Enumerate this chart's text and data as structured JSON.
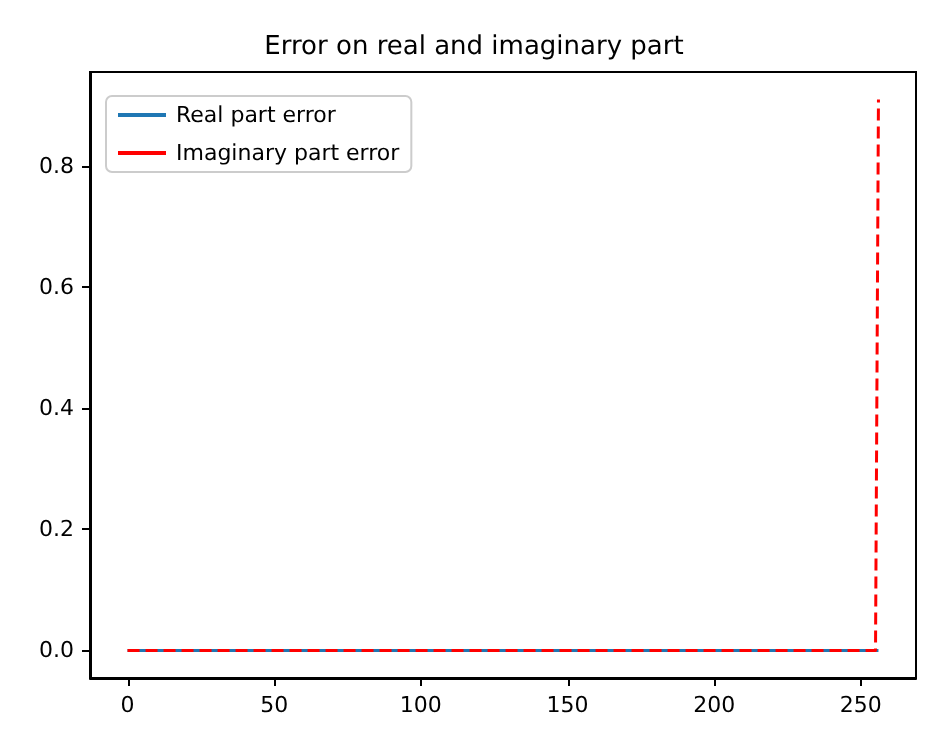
{
  "chart_data": {
    "type": "line",
    "title": "Error on real and imaginary part",
    "xlim": [
      -12.8,
      268.8
    ],
    "ylim": [
      -0.0455,
      0.9555
    ],
    "xticks": [
      0,
      50,
      100,
      150,
      200,
      250
    ],
    "yticks": [
      {
        "value": 0,
        "label": "0.0"
      },
      {
        "value": 0.2,
        "label": "0.2"
      },
      {
        "value": 0.4,
        "label": "0.4"
      },
      {
        "value": 0.6,
        "label": "0.6"
      },
      {
        "value": 0.8,
        "label": "0.8"
      }
    ],
    "grid": false,
    "legend": "top left",
    "marker": "none",
    "series": [
      {
        "name": "Real part error",
        "color": "#1f77b4",
        "line_style": "solid",
        "x": [
          0,
          256
        ],
        "values": [
          0,
          0
        ]
      },
      {
        "name": "Imaginary part error",
        "color": "#ff0000",
        "line_style": "dashed",
        "x": [
          0,
          255,
          256
        ],
        "values": [
          0,
          0,
          0.91
        ]
      }
    ]
  }
}
